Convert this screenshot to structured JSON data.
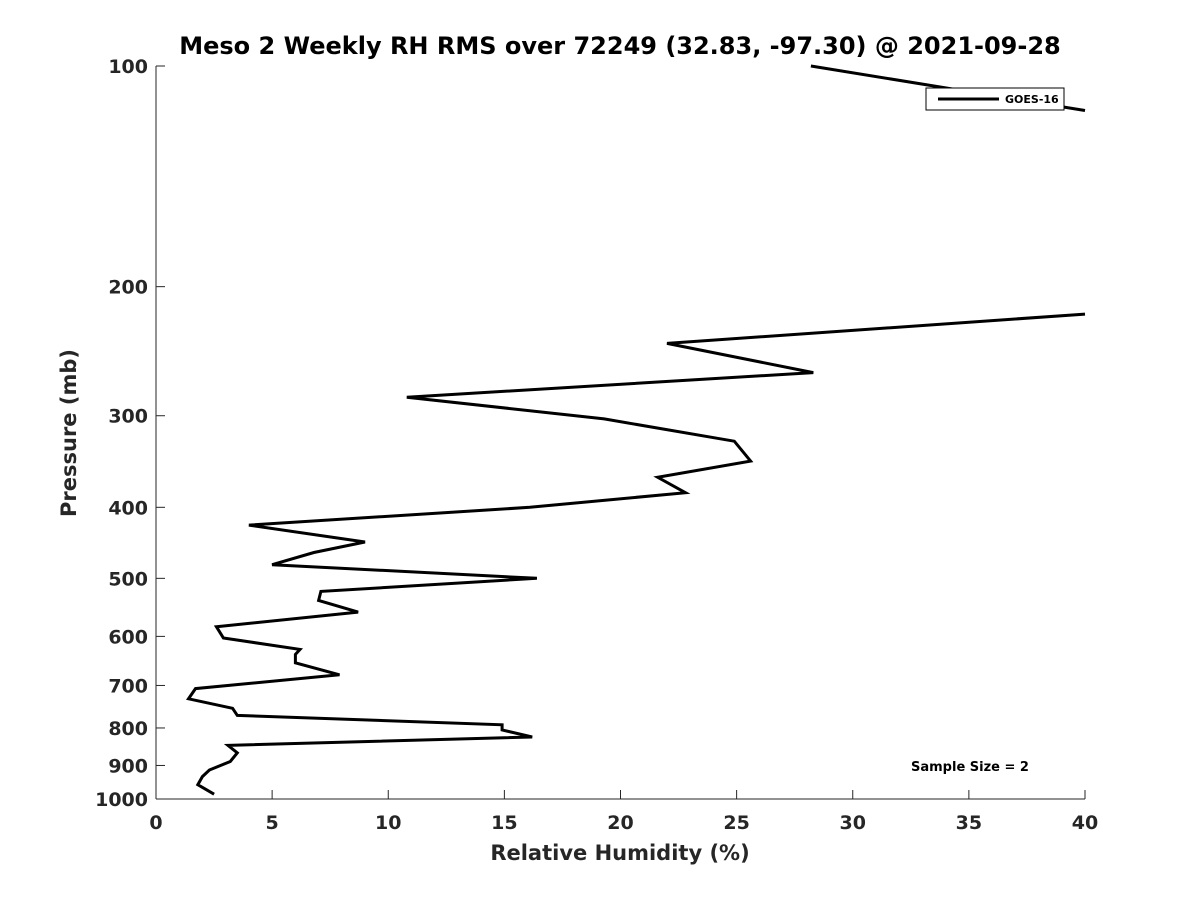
{
  "chart_data": {
    "type": "line",
    "title": "Meso 2 Weekly RH RMS over 72249 (32.83, -97.30) @ 2021-09-28",
    "xlabel": "Relative Humidity (%)",
    "ylabel": "Pressure (mb)",
    "xlim": [
      0,
      40
    ],
    "ylim": [
      100,
      1000
    ],
    "y_scale": "log",
    "y_reversed": true,
    "x_ticks": [
      "0",
      "5",
      "10",
      "15",
      "20",
      "25",
      "30",
      "35",
      "40"
    ],
    "y_ticks": [
      "100",
      "200",
      "300",
      "400",
      "500",
      "600",
      "700",
      "800",
      "900",
      "1000"
    ],
    "grid": false,
    "legend_position": "top-right",
    "line_color": "#000000",
    "annotation": "Sample Size = 2",
    "series": [
      {
        "name": "GOES-16",
        "points": [
          {
            "x": 28.2,
            "y": 100
          },
          {
            "x": 38.5,
            "y": 113
          },
          {
            "x": 40.0,
            "y": 115
          },
          {
            "x": null,
            "y": null
          },
          {
            "x": 40.0,
            "y": 218
          },
          {
            "x": 22.0,
            "y": 239
          },
          {
            "x": 28.3,
            "y": 262
          },
          {
            "x": 10.8,
            "y": 283
          },
          {
            "x": 19.3,
            "y": 303
          },
          {
            "x": 24.9,
            "y": 325
          },
          {
            "x": 25.6,
            "y": 346
          },
          {
            "x": 21.6,
            "y": 364
          },
          {
            "x": 22.8,
            "y": 382
          },
          {
            "x": 16.1,
            "y": 400
          },
          {
            "x": 4.0,
            "y": 423
          },
          {
            "x": 9.0,
            "y": 446
          },
          {
            "x": 6.8,
            "y": 461
          },
          {
            "x": 5.0,
            "y": 479
          },
          {
            "x": 16.4,
            "y": 500
          },
          {
            "x": 7.1,
            "y": 521
          },
          {
            "x": 7.0,
            "y": 536
          },
          {
            "x": 8.7,
            "y": 556
          },
          {
            "x": 2.6,
            "y": 582
          },
          {
            "x": 2.9,
            "y": 603
          },
          {
            "x": 6.2,
            "y": 625
          },
          {
            "x": 6.0,
            "y": 635
          },
          {
            "x": 6.0,
            "y": 652
          },
          {
            "x": 7.9,
            "y": 677
          },
          {
            "x": 1.7,
            "y": 707
          },
          {
            "x": 1.4,
            "y": 730
          },
          {
            "x": 3.3,
            "y": 752
          },
          {
            "x": 3.5,
            "y": 769
          },
          {
            "x": 14.9,
            "y": 792
          },
          {
            "x": 14.9,
            "y": 805
          },
          {
            "x": 16.2,
            "y": 823
          },
          {
            "x": 3.1,
            "y": 845
          },
          {
            "x": 3.5,
            "y": 865
          },
          {
            "x": 3.2,
            "y": 889
          },
          {
            "x": 2.3,
            "y": 913
          },
          {
            "x": 2.0,
            "y": 932
          },
          {
            "x": 1.8,
            "y": 956
          },
          {
            "x": 2.5,
            "y": 985
          }
        ]
      }
    ]
  }
}
